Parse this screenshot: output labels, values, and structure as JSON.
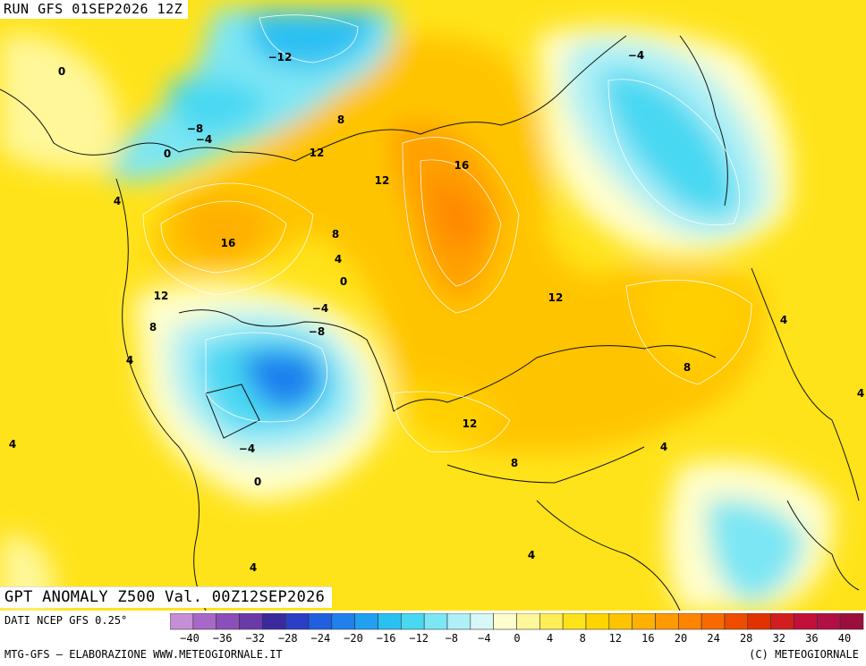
{
  "header": {
    "run_label": "RUN GFS 01SEP2026 12Z"
  },
  "title": {
    "text": "GPT ANOMALY Z500 Val. 00Z12SEP2026"
  },
  "footer": {
    "source": "DATI NCEP GFS 0.25°",
    "credits_left": "MTG-GFS — ELABORAZIONE WWW.METEOGIORNALE.IT",
    "credits_right": "(C) METEOGIORNALE"
  },
  "legend": {
    "colors": [
      "#c58fd6",
      "#a868c8",
      "#8a4fb8",
      "#6a3aa8",
      "#3b2a9e",
      "#2a3fc6",
      "#1f5fe0",
      "#1f80ee",
      "#21a0f2",
      "#2bc0f2",
      "#48d8f2",
      "#7ce6f4",
      "#aef0f6",
      "#d8f8f8",
      "#fffecc",
      "#fff79a",
      "#ffee55",
      "#ffe31a",
      "#ffd500",
      "#ffc400",
      "#ffb000",
      "#ff9a00",
      "#ff8400",
      "#f86a00",
      "#ee4d00",
      "#e13200",
      "#d21e1e",
      "#c2103a",
      "#b01045",
      "#9c0e3c"
    ],
    "ticks": [
      "−40",
      "−36",
      "−32",
      "−28",
      "−24",
      "−20",
      "−16",
      "−12",
      "−8",
      "−4",
      "0",
      "4",
      "8",
      "12",
      "16",
      "20",
      "24",
      "28",
      "32",
      "36",
      "40"
    ]
  },
  "map": {
    "contour_labels": [
      {
        "text": "−12"
      },
      {
        "text": "0"
      },
      {
        "text": "−4"
      },
      {
        "text": "−8"
      },
      {
        "text": "−4"
      },
      {
        "text": "0"
      },
      {
        "text": "4"
      },
      {
        "text": "8"
      },
      {
        "text": "12"
      },
      {
        "text": "12"
      },
      {
        "text": "16"
      },
      {
        "text": "16"
      },
      {
        "text": "8"
      },
      {
        "text": "4"
      },
      {
        "text": "0"
      },
      {
        "text": "−4"
      },
      {
        "text": "−8"
      },
      {
        "text": "12"
      },
      {
        "text": "8"
      },
      {
        "text": "4"
      },
      {
        "text": "12"
      },
      {
        "text": "4"
      },
      {
        "text": "8"
      },
      {
        "text": "4"
      },
      {
        "text": "−4"
      },
      {
        "text": "0"
      },
      {
        "text": "12"
      },
      {
        "text": "8"
      },
      {
        "text": "4"
      },
      {
        "text": "4"
      },
      {
        "text": "4"
      },
      {
        "text": "4"
      }
    ]
  }
}
